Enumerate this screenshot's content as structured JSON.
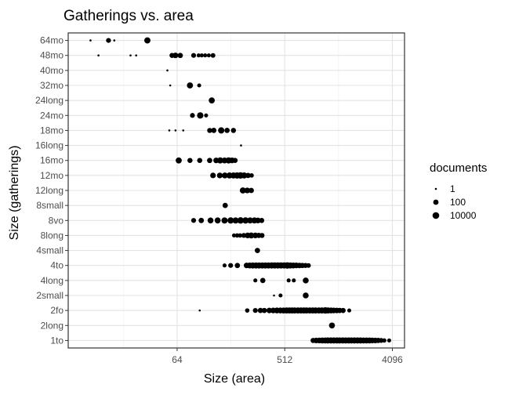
{
  "chart_data": {
    "type": "scatter",
    "title": "Gatherings vs. area",
    "xlabel": "Size (area)",
    "ylabel": "Size (gatherings)",
    "x_scale": "log2",
    "x_ticks": [
      64,
      512,
      4096
    ],
    "x_tick_labels": [
      "64",
      "512",
      "4096"
    ],
    "xlim": [
      7.8,
      5180
    ],
    "categories": [
      "1to",
      "2long",
      "2fo",
      "2small",
      "4long",
      "4to",
      "4small",
      "8long",
      "8vo",
      "8small",
      "12long",
      "12mo",
      "16mo",
      "16long",
      "18mo",
      "24mo",
      "24long",
      "32mo",
      "40mo",
      "48mo",
      "64mo"
    ],
    "grid": true,
    "legend": {
      "title": "documents",
      "entries": [
        {
          "label": "1",
          "size": 1
        },
        {
          "label": "100",
          "size": 100
        },
        {
          "label": "10000",
          "size": 10000
        }
      ],
      "position": "right"
    },
    "points": [
      {
        "y": "64mo",
        "x": 12,
        "size": 1
      },
      {
        "y": "64mo",
        "x": 17,
        "size": 30
      },
      {
        "y": "64mo",
        "x": 19,
        "size": 1
      },
      {
        "y": "64mo",
        "x": 36,
        "size": 1500
      },
      {
        "y": "48mo",
        "x": 14,
        "size": 1
      },
      {
        "y": "48mo",
        "x": 26,
        "size": 1
      },
      {
        "y": "48mo",
        "x": 29,
        "size": 1
      },
      {
        "y": "48mo",
        "x": 58,
        "size": 50
      },
      {
        "y": "48mo",
        "x": 62,
        "size": 200
      },
      {
        "y": "48mo",
        "x": 68,
        "size": 80
      },
      {
        "y": "48mo",
        "x": 88,
        "size": 30
      },
      {
        "y": "48mo",
        "x": 97,
        "size": 5
      },
      {
        "y": "48mo",
        "x": 103,
        "size": 5
      },
      {
        "y": "48mo",
        "x": 110,
        "size": 5
      },
      {
        "y": "48mo",
        "x": 118,
        "size": 5
      },
      {
        "y": "48mo",
        "x": 128,
        "size": 20
      },
      {
        "y": "40mo",
        "x": 53,
        "size": 1
      },
      {
        "y": "32mo",
        "x": 56,
        "size": 1
      },
      {
        "y": "32mo",
        "x": 82,
        "size": 1000
      },
      {
        "y": "32mo",
        "x": 98,
        "size": 5
      },
      {
        "y": "24long",
        "x": 125,
        "size": 800
      },
      {
        "y": "24mo",
        "x": 86,
        "size": 30
      },
      {
        "y": "24mo",
        "x": 100,
        "size": 2500
      },
      {
        "y": "24mo",
        "x": 112,
        "size": 5
      },
      {
        "y": "18mo",
        "x": 55,
        "size": 1
      },
      {
        "y": "18mo",
        "x": 62,
        "size": 1
      },
      {
        "y": "18mo",
        "x": 72,
        "size": 1
      },
      {
        "y": "18mo",
        "x": 120,
        "size": 40
      },
      {
        "y": "18mo",
        "x": 130,
        "size": 80
      },
      {
        "y": "18mo",
        "x": 150,
        "size": 2000
      },
      {
        "y": "18mo",
        "x": 168,
        "size": 80
      },
      {
        "y": "18mo",
        "x": 190,
        "size": 50
      },
      {
        "y": "16long",
        "x": 220,
        "size": 1
      },
      {
        "y": "16mo",
        "x": 66,
        "size": 1000
      },
      {
        "y": "16mo",
        "x": 82,
        "size": 50
      },
      {
        "y": "16mo",
        "x": 99,
        "size": 50
      },
      {
        "y": "16mo",
        "x": 120,
        "size": 80
      },
      {
        "y": "16mo",
        "x": 136,
        "size": 200
      },
      {
        "y": "16mo",
        "x": 147,
        "size": 1500
      },
      {
        "y": "16mo",
        "x": 160,
        "size": 500
      },
      {
        "y": "16mo",
        "x": 173,
        "size": 1500
      },
      {
        "y": "16mo",
        "x": 185,
        "size": 300
      },
      {
        "y": "16mo",
        "x": 196,
        "size": 60
      },
      {
        "y": "12mo",
        "x": 128,
        "size": 200
      },
      {
        "y": "12mo",
        "x": 146,
        "size": 300
      },
      {
        "y": "12mo",
        "x": 161,
        "size": 500
      },
      {
        "y": "12mo",
        "x": 176,
        "size": 800
      },
      {
        "y": "12mo",
        "x": 190,
        "size": 1000
      },
      {
        "y": "12mo",
        "x": 204,
        "size": 2000
      },
      {
        "y": "12mo",
        "x": 218,
        "size": 4000
      },
      {
        "y": "12mo",
        "x": 234,
        "size": 800
      },
      {
        "y": "12mo",
        "x": 252,
        "size": 80
      },
      {
        "y": "12mo",
        "x": 270,
        "size": 10
      },
      {
        "y": "12long",
        "x": 228,
        "size": 1200
      },
      {
        "y": "12long",
        "x": 248,
        "size": 300
      },
      {
        "y": "12long",
        "x": 268,
        "size": 100
      },
      {
        "y": "8small",
        "x": 162,
        "size": 80
      },
      {
        "y": "8vo",
        "x": 88,
        "size": 30
      },
      {
        "y": "8vo",
        "x": 102,
        "size": 100
      },
      {
        "y": "8vo",
        "x": 122,
        "size": 500
      },
      {
        "y": "8vo",
        "x": 140,
        "size": 800
      },
      {
        "y": "8vo",
        "x": 160,
        "size": 1500
      },
      {
        "y": "8vo",
        "x": 180,
        "size": 2000
      },
      {
        "y": "8vo",
        "x": 198,
        "size": 1500
      },
      {
        "y": "8vo",
        "x": 218,
        "size": 4000
      },
      {
        "y": "8vo",
        "x": 240,
        "size": 2000
      },
      {
        "y": "8vo",
        "x": 262,
        "size": 1000
      },
      {
        "y": "8vo",
        "x": 285,
        "size": 800
      },
      {
        "y": "8vo",
        "x": 305,
        "size": 300
      },
      {
        "y": "8vo",
        "x": 328,
        "size": 60
      },
      {
        "y": "8long",
        "x": 192,
        "size": 5
      },
      {
        "y": "8long",
        "x": 204,
        "size": 10
      },
      {
        "y": "8long",
        "x": 216,
        "size": 10
      },
      {
        "y": "8long",
        "x": 232,
        "size": 30
      },
      {
        "y": "8long",
        "x": 250,
        "size": 300
      },
      {
        "y": "8long",
        "x": 268,
        "size": 500
      },
      {
        "y": "8long",
        "x": 290,
        "size": 300
      },
      {
        "y": "8long",
        "x": 310,
        "size": 80
      },
      {
        "y": "8long",
        "x": 330,
        "size": 40
      },
      {
        "y": "4small",
        "x": 302,
        "size": 80
      },
      {
        "y": "4to",
        "x": 160,
        "size": 5
      },
      {
        "y": "4to",
        "x": 180,
        "size": 30
      },
      {
        "y": "4to",
        "x": 205,
        "size": 80
      },
      {
        "y": "4to",
        "x": 245,
        "size": 200
      },
      {
        "y": "4to",
        "x": 260,
        "size": 500
      },
      {
        "y": "4to",
        "x": 276,
        "size": 800
      },
      {
        "y": "4to",
        "x": 294,
        "size": 1000
      },
      {
        "y": "4to",
        "x": 312,
        "size": 1000
      },
      {
        "y": "4to",
        "x": 332,
        "size": 1000
      },
      {
        "y": "4to",
        "x": 352,
        "size": 1000
      },
      {
        "y": "4to",
        "x": 374,
        "size": 1000
      },
      {
        "y": "4to",
        "x": 398,
        "size": 1200
      },
      {
        "y": "4to",
        "x": 422,
        "size": 1200
      },
      {
        "y": "4to",
        "x": 448,
        "size": 1200
      },
      {
        "y": "4to",
        "x": 476,
        "size": 1200
      },
      {
        "y": "4to",
        "x": 506,
        "size": 1500
      },
      {
        "y": "4to",
        "x": 538,
        "size": 3000
      },
      {
        "y": "4to",
        "x": 570,
        "size": 800
      },
      {
        "y": "4to",
        "x": 604,
        "size": 500
      },
      {
        "y": "4to",
        "x": 640,
        "size": 300
      },
      {
        "y": "4to",
        "x": 680,
        "size": 150
      },
      {
        "y": "4to",
        "x": 720,
        "size": 80
      },
      {
        "y": "4to",
        "x": 764,
        "size": 40
      },
      {
        "y": "4to",
        "x": 810,
        "size": 20
      },
      {
        "y": "4long",
        "x": 290,
        "size": 5
      },
      {
        "y": "4long",
        "x": 335,
        "size": 80
      },
      {
        "y": "4long",
        "x": 552,
        "size": 5
      },
      {
        "y": "4long",
        "x": 610,
        "size": 5
      },
      {
        "y": "4long",
        "x": 768,
        "size": 500
      },
      {
        "y": "2small",
        "x": 416,
        "size": 1
      },
      {
        "y": "2small",
        "x": 472,
        "size": 5
      },
      {
        "y": "2small",
        "x": 768,
        "size": 500
      },
      {
        "y": "2fo",
        "x": 99,
        "size": 1
      },
      {
        "y": "2fo",
        "x": 248,
        "size": 10
      },
      {
        "y": "2fo",
        "x": 290,
        "size": 30
      },
      {
        "y": "2fo",
        "x": 320,
        "size": 80
      },
      {
        "y": "2fo",
        "x": 345,
        "size": 60
      },
      {
        "y": "2fo",
        "x": 380,
        "size": 200
      },
      {
        "y": "2fo",
        "x": 410,
        "size": 300
      },
      {
        "y": "2fo",
        "x": 440,
        "size": 400
      },
      {
        "y": "2fo",
        "x": 470,
        "size": 500
      },
      {
        "y": "2fo",
        "x": 500,
        "size": 600
      },
      {
        "y": "2fo",
        "x": 530,
        "size": 800
      },
      {
        "y": "2fo",
        "x": 560,
        "size": 800
      },
      {
        "y": "2fo",
        "x": 590,
        "size": 1000
      },
      {
        "y": "2fo",
        "x": 620,
        "size": 1000
      },
      {
        "y": "2fo",
        "x": 660,
        "size": 1000
      },
      {
        "y": "2fo",
        "x": 700,
        "size": 1000
      },
      {
        "y": "2fo",
        "x": 740,
        "size": 1000
      },
      {
        "y": "2fo",
        "x": 780,
        "size": 1000
      },
      {
        "y": "2fo",
        "x": 830,
        "size": 1000
      },
      {
        "y": "2fo",
        "x": 880,
        "size": 1000
      },
      {
        "y": "2fo",
        "x": 930,
        "size": 1000
      },
      {
        "y": "2fo",
        "x": 990,
        "size": 1000
      },
      {
        "y": "2fo",
        "x": 1050,
        "size": 1000
      },
      {
        "y": "2fo",
        "x": 1120,
        "size": 3500
      },
      {
        "y": "2fo",
        "x": 1180,
        "size": 800
      },
      {
        "y": "2fo",
        "x": 1250,
        "size": 500
      },
      {
        "y": "2fo",
        "x": 1320,
        "size": 300
      },
      {
        "y": "2fo",
        "x": 1400,
        "size": 200
      },
      {
        "y": "2fo",
        "x": 1480,
        "size": 100
      },
      {
        "y": "2fo",
        "x": 1580,
        "size": 60
      },
      {
        "y": "2fo",
        "x": 1780,
        "size": 5
      },
      {
        "y": "2long",
        "x": 1275,
        "size": 600
      },
      {
        "y": "1to",
        "x": 885,
        "size": 50
      },
      {
        "y": "1to",
        "x": 940,
        "size": 200
      },
      {
        "y": "1to",
        "x": 1000,
        "size": 400
      },
      {
        "y": "1to",
        "x": 1060,
        "size": 600
      },
      {
        "y": "1to",
        "x": 1120,
        "size": 800
      },
      {
        "y": "1to",
        "x": 1180,
        "size": 1000
      },
      {
        "y": "1to",
        "x": 1250,
        "size": 1000
      },
      {
        "y": "1to",
        "x": 1320,
        "size": 1000
      },
      {
        "y": "1to",
        "x": 1400,
        "size": 1000
      },
      {
        "y": "1to",
        "x": 1480,
        "size": 1000
      },
      {
        "y": "1to",
        "x": 1570,
        "size": 1000
      },
      {
        "y": "1to",
        "x": 1660,
        "size": 1000
      },
      {
        "y": "1to",
        "x": 1760,
        "size": 1000
      },
      {
        "y": "1to",
        "x": 1860,
        "size": 1000
      },
      {
        "y": "1to",
        "x": 1970,
        "size": 1000
      },
      {
        "y": "1to",
        "x": 2090,
        "size": 1000
      },
      {
        "y": "1to",
        "x": 2210,
        "size": 1000
      },
      {
        "y": "1to",
        "x": 2340,
        "size": 800
      },
      {
        "y": "1to",
        "x": 2480,
        "size": 800
      },
      {
        "y": "1to",
        "x": 2630,
        "size": 500
      },
      {
        "y": "1to",
        "x": 2780,
        "size": 300
      },
      {
        "y": "1to",
        "x": 2950,
        "size": 200
      },
      {
        "y": "1to",
        "x": 3120,
        "size": 80
      },
      {
        "y": "1to",
        "x": 3300,
        "size": 30
      },
      {
        "y": "1to",
        "x": 3500,
        "size": 10
      },
      {
        "y": "1to",
        "x": 3850,
        "size": 5
      }
    ]
  }
}
